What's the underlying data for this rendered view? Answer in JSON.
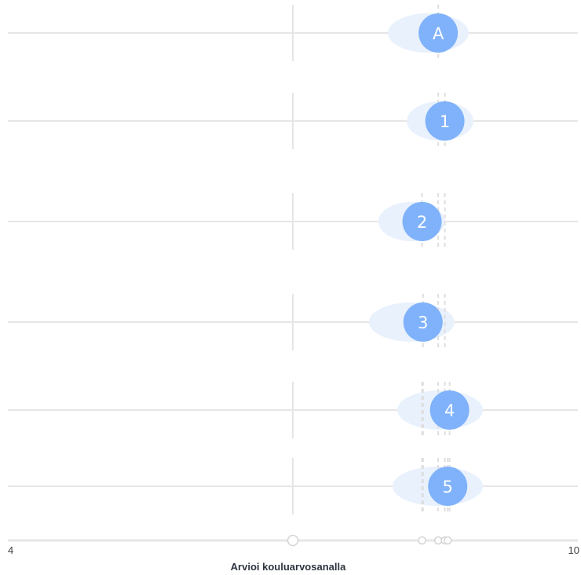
{
  "chart_data": {
    "type": "scatter",
    "xlabel": "Arvioi kouluarvosanalla",
    "xlim": [
      4,
      10
    ],
    "x_tick_labels": [
      "4",
      "10"
    ],
    "reference_x": 7,
    "colors": {
      "marker": "#7fb2fa",
      "spread": "#e9f1fd",
      "grid": "#e6e6e6",
      "dash": "#dedede"
    },
    "series": [
      {
        "label": "A",
        "value": 8.53,
        "spread": [
          8.0,
          8.85
        ],
        "avg_lines": [
          8.53
        ]
      },
      {
        "label": "1",
        "value": 8.6,
        "spread": [
          8.2,
          8.9
        ],
        "avg_lines": [
          8.53,
          8.6
        ]
      },
      {
        "label": "2",
        "value": 8.36,
        "spread": [
          7.9,
          8.6
        ],
        "avg_lines": [
          8.36,
          8.53,
          8.6
        ]
      },
      {
        "label": "3",
        "value": 8.37,
        "spread": [
          7.8,
          8.7
        ],
        "avg_lines": [
          8.37,
          8.53,
          8.6
        ]
      },
      {
        "label": "4",
        "value": 8.65,
        "spread": [
          8.1,
          9.0
        ],
        "avg_lines": [
          8.36,
          8.37,
          8.53,
          8.6,
          8.65
        ]
      },
      {
        "label": "5",
        "value": 8.63,
        "spread": [
          8.05,
          9.0
        ],
        "avg_lines": [
          8.36,
          8.37,
          8.53,
          8.6,
          8.63,
          8.65
        ]
      }
    ],
    "slider_values": [
      7,
      8.36,
      8.53,
      8.6,
      8.63
    ]
  }
}
